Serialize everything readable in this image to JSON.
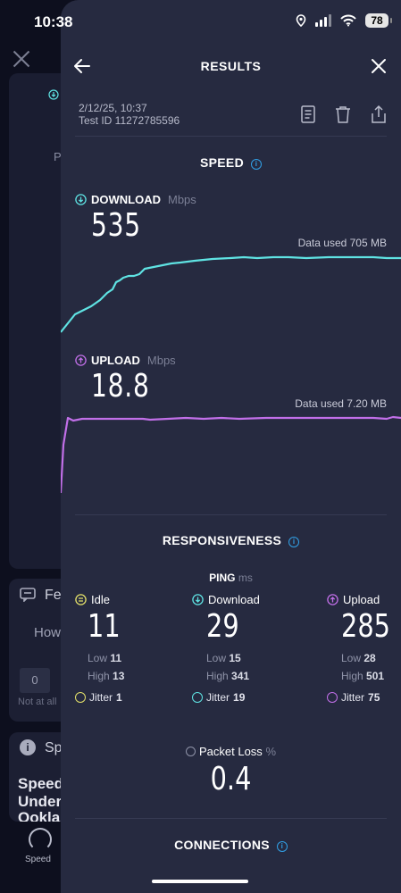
{
  "status_bar": {
    "time": "10:38",
    "battery": "78"
  },
  "background_app": {
    "card_letter": "P",
    "feedback_label": "Fe",
    "question": "How",
    "scale_first": "0",
    "scale_hint": "Not at all",
    "info_title": "Sp",
    "promo_lines": [
      "Speed",
      "Under",
      "Ookla"
    ],
    "tab_label": "Speed"
  },
  "header": {
    "title": "RESULTS"
  },
  "meta": {
    "date": "2/12/25, 10:37",
    "test_id": "Test ID 11272785596"
  },
  "speed": {
    "title": "SPEED",
    "download": {
      "label": "DOWNLOAD",
      "unit": "Mbps",
      "value": "535",
      "data_used": "Data used 705 MB",
      "color": "#5fe3e3"
    },
    "upload": {
      "label": "UPLOAD",
      "unit": "Mbps",
      "value": "18.8",
      "data_used": "Data used 7.20 MB",
      "color": "#c16fe8"
    }
  },
  "responsiveness": {
    "title": "RESPONSIVENESS",
    "ping_label": "PING",
    "ping_unit": "ms",
    "columns": [
      {
        "label": "Idle",
        "value": "11",
        "low_label": "Low",
        "low": "11",
        "high_label": "High",
        "high": "13",
        "jitter_label": "Jitter",
        "jitter": "1",
        "color": "#e3e06a"
      },
      {
        "label": "Download",
        "value": "29",
        "low_label": "Low",
        "low": "15",
        "high_label": "High",
        "high": "341",
        "jitter_label": "Jitter",
        "jitter": "19",
        "color": "#5fe3e3"
      },
      {
        "label": "Upload",
        "value": "285",
        "low_label": "Low",
        "low": "28",
        "high_label": "High",
        "high": "501",
        "jitter_label": "Jitter",
        "jitter": "75",
        "color": "#c16fe8"
      }
    ],
    "packet_loss": {
      "label": "Packet Loss",
      "unit": "%",
      "value": "0.4"
    }
  },
  "connections": {
    "title": "CONNECTIONS"
  },
  "colors": {
    "accent": "#31a0e6",
    "sheet_bg": "#262a40",
    "download": "#5fe3e3",
    "upload": "#c16fe8",
    "idle": "#e3e06a"
  }
}
